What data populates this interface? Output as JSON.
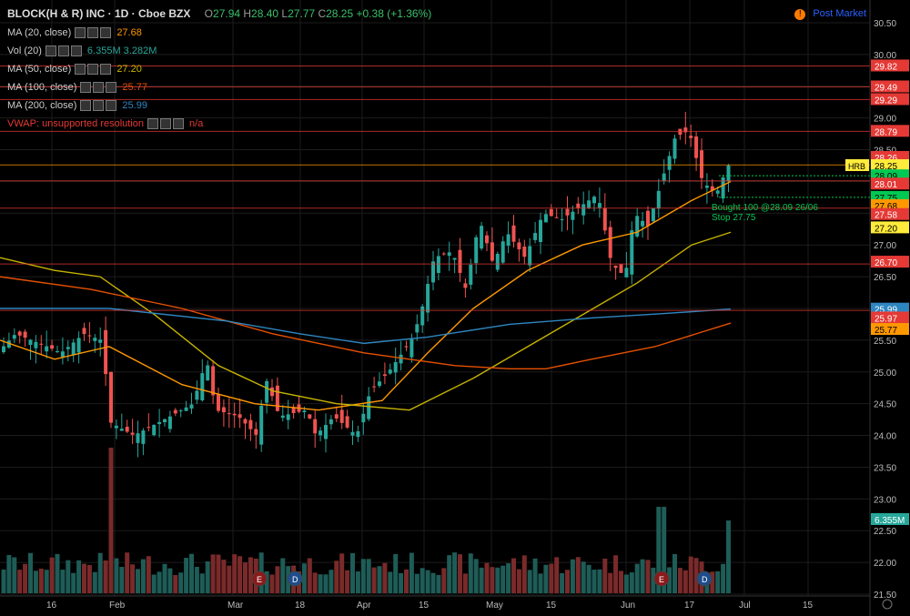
{
  "header": {
    "symbol": "BLOCK(H & R) INC · 1D · Cboe BZX",
    "open": "27.94",
    "high": "28.40",
    "low": "27.77",
    "close": "28.25",
    "change": "+0.38 (+1.36%)"
  },
  "post_market": "Post Market",
  "indicators": [
    {
      "label": "MA (20, close)",
      "value": "27.68",
      "color": "#ff9800"
    },
    {
      "label": "Vol (20)",
      "value": "6.355M  3.282M",
      "color": "#26a69a"
    },
    {
      "label": "MA (50, close)",
      "value": "27.20",
      "color": "#c8b400"
    },
    {
      "label": "MA (100, close)",
      "value": "25.77",
      "color": "#e65100"
    },
    {
      "label": "MA (200, close)",
      "value": "25.99",
      "color": "#2e86c1"
    },
    {
      "label": "VWAP: unsupported resolution",
      "value": "n/a",
      "color": "#e53935"
    }
  ],
  "chart_data": {
    "type": "candlestick",
    "x_ticks": [
      "16",
      "Feb",
      "Mar",
      "18",
      "Apr",
      "15",
      "May",
      "15",
      "Jun",
      "17",
      "Jul",
      "15"
    ],
    "y_ticks": [
      21.5,
      22.0,
      22.5,
      23.0,
      23.5,
      24.0,
      24.5,
      25.0,
      25.5,
      26.0,
      26.5,
      27.0,
      27.5,
      28.0,
      28.5,
      29.0,
      29.5,
      30.0,
      30.5
    ],
    "ylim": [
      21.15,
      30.7
    ],
    "price_labels": [
      {
        "value": "29.82",
        "color": "#e53935"
      },
      {
        "value": "29.49",
        "color": "#e53935"
      },
      {
        "value": "29.29",
        "color": "#e53935"
      },
      {
        "value": "28.79",
        "color": "#e53935"
      },
      {
        "value": "28.26",
        "color": "#e53935"
      },
      {
        "value": "28.25",
        "color": "#ffeb3b"
      },
      {
        "value": "28.09",
        "color": "#00c853"
      },
      {
        "value": "28.01",
        "color": "#e53935"
      },
      {
        "value": "27.75",
        "color": "#00c853"
      },
      {
        "value": "27.68",
        "color": "#ff9800"
      },
      {
        "value": "27.58",
        "color": "#e53935"
      },
      {
        "value": "27.20",
        "color": "#ffeb3b"
      },
      {
        "value": "26.70",
        "color": "#e53935"
      },
      {
        "value": "25.99",
        "color": "#2e86c1"
      },
      {
        "value": "25.97",
        "color": "#e53935"
      },
      {
        "value": "25.77",
        "color": "#ff9800"
      },
      {
        "value": "6.355M",
        "color": "#26a69a"
      }
    ],
    "symbol_tag": "HRB",
    "annotation": [
      "Bought 100 @28.09 26/06",
      "Stop 27.75"
    ],
    "events": [
      "E",
      "D",
      "E",
      "D"
    ],
    "volume_last": "6.355M",
    "ma20_last": 27.68,
    "ma50_last": 27.2,
    "ma100_last": 25.77,
    "ma200_last": 25.99,
    "close_last": 28.25,
    "candles_summary": "~125 daily candles mid-Jan to late Jun"
  }
}
